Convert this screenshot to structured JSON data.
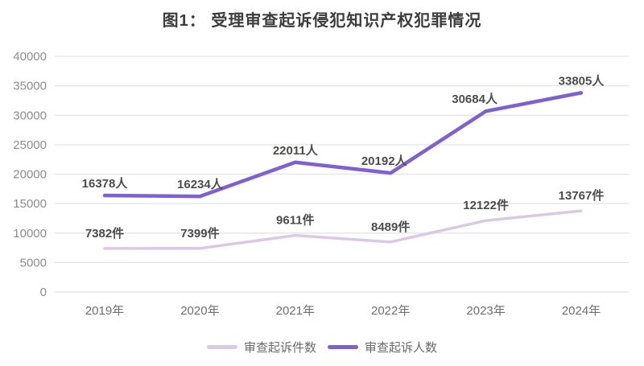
{
  "title": "图1：  受理审查起诉侵犯知识产权犯罪情况",
  "chart_data": {
    "type": "line",
    "title": "图1：  受理审查起诉侵犯知识产权犯罪情况",
    "categories": [
      "2019年",
      "2020年",
      "2021年",
      "2022年",
      "2023年",
      "2024年"
    ],
    "series": [
      {
        "name": "审查起诉件数",
        "unit": "件",
        "values": [
          7382,
          7399,
          9611,
          8489,
          12122,
          13767
        ],
        "labels": [
          "7382件",
          "7399件",
          "9611件",
          "8489件",
          "12122件",
          "13767件"
        ],
        "color": "#d9c8e8"
      },
      {
        "name": "审查起诉人数",
        "unit": "人",
        "values": [
          16378,
          16234,
          22011,
          20192,
          30684,
          33805
        ],
        "labels": [
          "16378人",
          "16234人",
          "22011人",
          "20192人",
          "30684人",
          "33805人"
        ],
        "color": "#7e60d2"
      }
    ],
    "xlabel": "",
    "ylabel": "",
    "ylim": [
      0,
      40000
    ],
    "ytick_step": 5000,
    "ytick_labels": [
      "0",
      "5000",
      "10000",
      "15000",
      "20000",
      "25000",
      "30000",
      "35000",
      "40000"
    ],
    "grid": true,
    "legend_position": "bottom",
    "colors": {
      "grid_line": "#e3e3e3",
      "tick_text": "#8c8c8c",
      "xaxis_text": "#6e6e6e",
      "data_label_text": "#4c4c4c"
    }
  }
}
